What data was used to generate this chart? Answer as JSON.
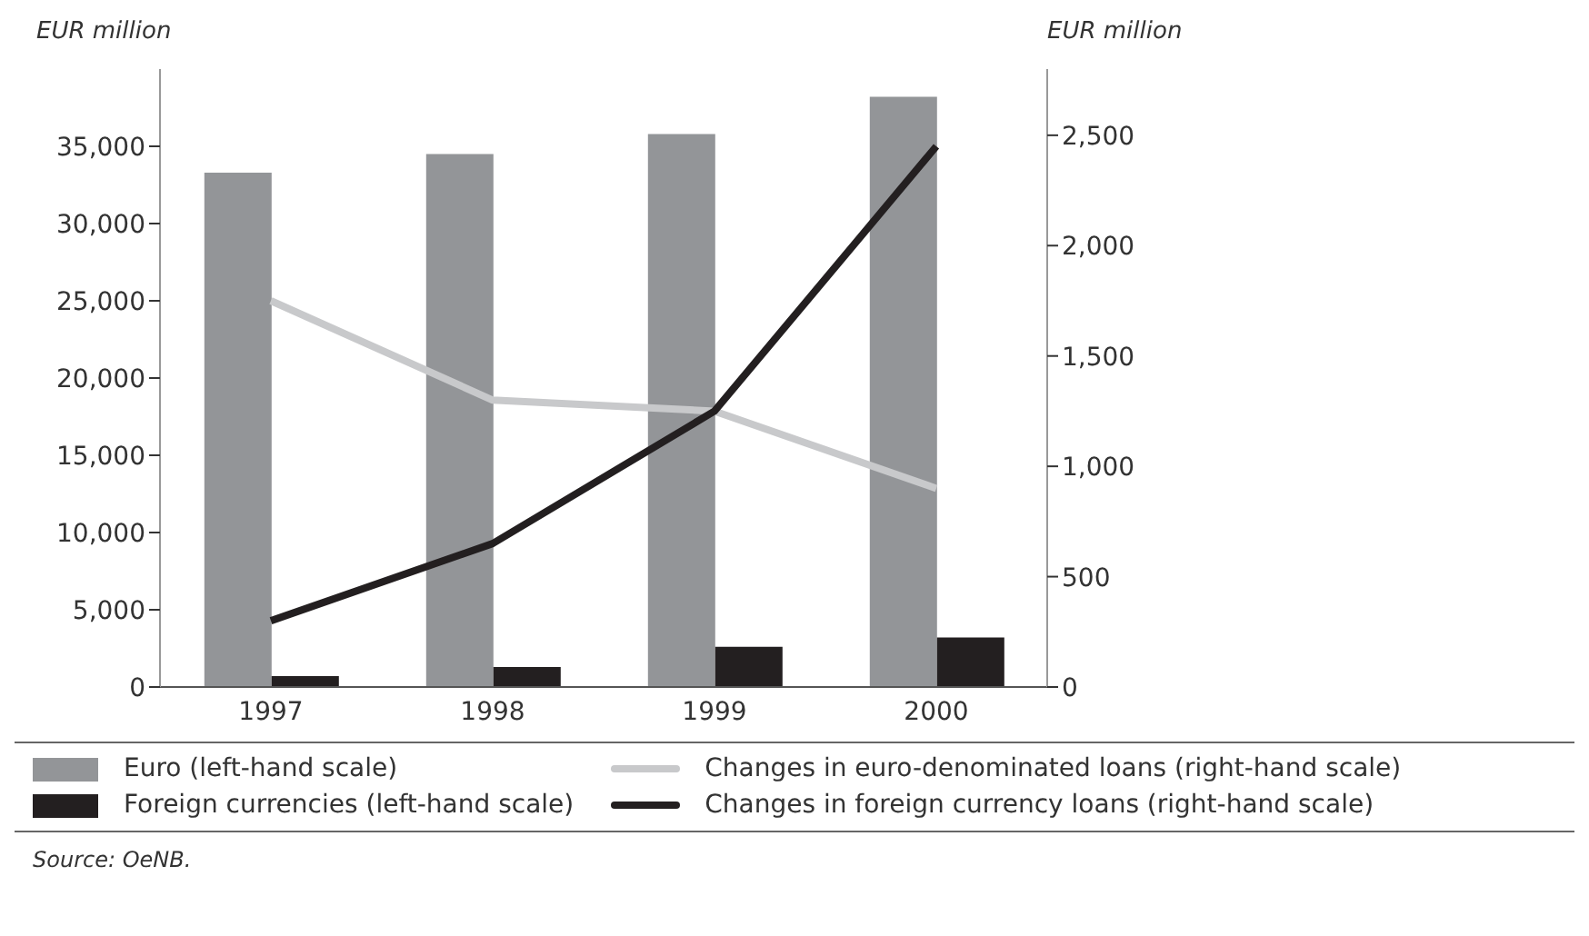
{
  "chart_data": {
    "type": "bar",
    "categories": [
      "1997",
      "1998",
      "1999",
      "2000"
    ],
    "series": [
      {
        "name": "Euro (left-hand scale)",
        "color": "#939598",
        "values": [
          33300,
          34500,
          35800,
          38200
        ]
      },
      {
        "name": "Foreign currencies (left-hand scale)",
        "color": "#231f20",
        "values": [
          700,
          1300,
          2600,
          3200
        ]
      },
      {
        "name": "Changes in euro-denominated loans (right-hand scale)",
        "type": "line",
        "axis": "y2",
        "color": "#c8c9cb",
        "values": [
          1750,
          1300,
          1250,
          900
        ]
      },
      {
        "name": "Changes in foreign currency loans (right-hand scale)",
        "type": "line",
        "axis": "y2",
        "color": "#231f20",
        "values": [
          300,
          650,
          1250,
          2450
        ]
      }
    ],
    "ylabel": "EUR million",
    "y2label": "EUR million",
    "ylim": [
      0,
      40000
    ],
    "yticks": [
      {
        "value": 0,
        "label": "0"
      },
      {
        "value": 5000,
        "label": "5,000"
      },
      {
        "value": 10000,
        "label": "10,000"
      },
      {
        "value": 15000,
        "label": "15,000"
      },
      {
        "value": 20000,
        "label": "20,000"
      },
      {
        "value": 25000,
        "label": "25,000"
      },
      {
        "value": 30000,
        "label": "30,000"
      },
      {
        "value": 35000,
        "label": "35,000"
      }
    ],
    "y2lim": [
      0,
      2800
    ],
    "y2ticks": [
      {
        "value": 0,
        "label": "0"
      },
      {
        "value": 500,
        "label": "500"
      },
      {
        "value": 1000,
        "label": "1,000"
      },
      {
        "value": 1500,
        "label": "1,500"
      },
      {
        "value": 2000,
        "label": "2,000"
      },
      {
        "value": 2500,
        "label": "2,500"
      }
    ],
    "grid": false,
    "legend": "bottom",
    "marker": "none",
    "line_style": "solid",
    "annotations": [
      "Source: OeNB."
    ]
  }
}
